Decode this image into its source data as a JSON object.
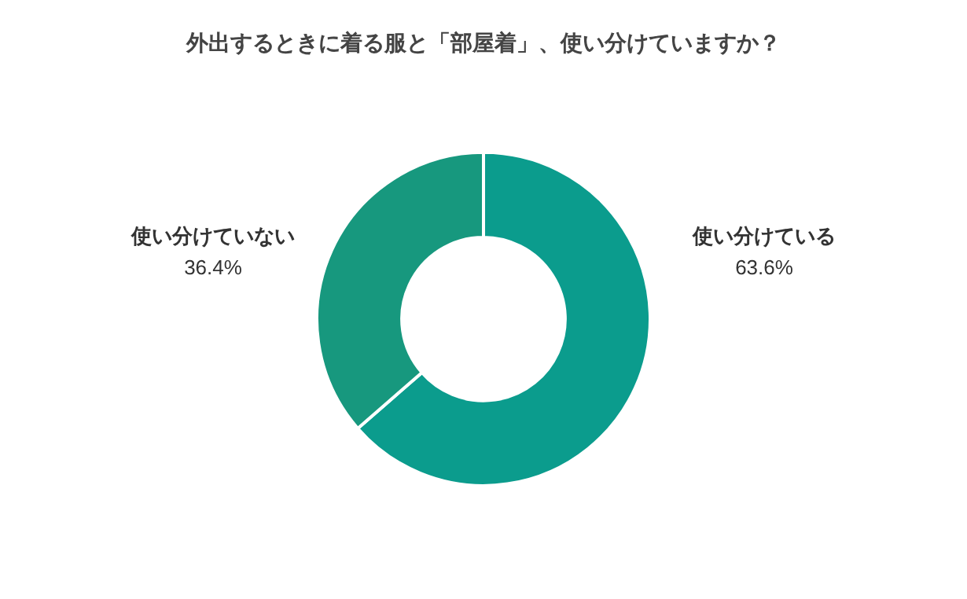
{
  "chart_data": {
    "type": "donut",
    "title": "外出するときに着る服と「部屋着」、使い分けていますか？",
    "categories": [
      "使い分けている",
      "使い分けていない"
    ],
    "values": [
      63.6,
      36.4
    ],
    "value_labels": [
      "63.6%",
      "36.4%"
    ],
    "colors": [
      "#0b9c8d",
      "#17987e"
    ],
    "legend": false
  }
}
